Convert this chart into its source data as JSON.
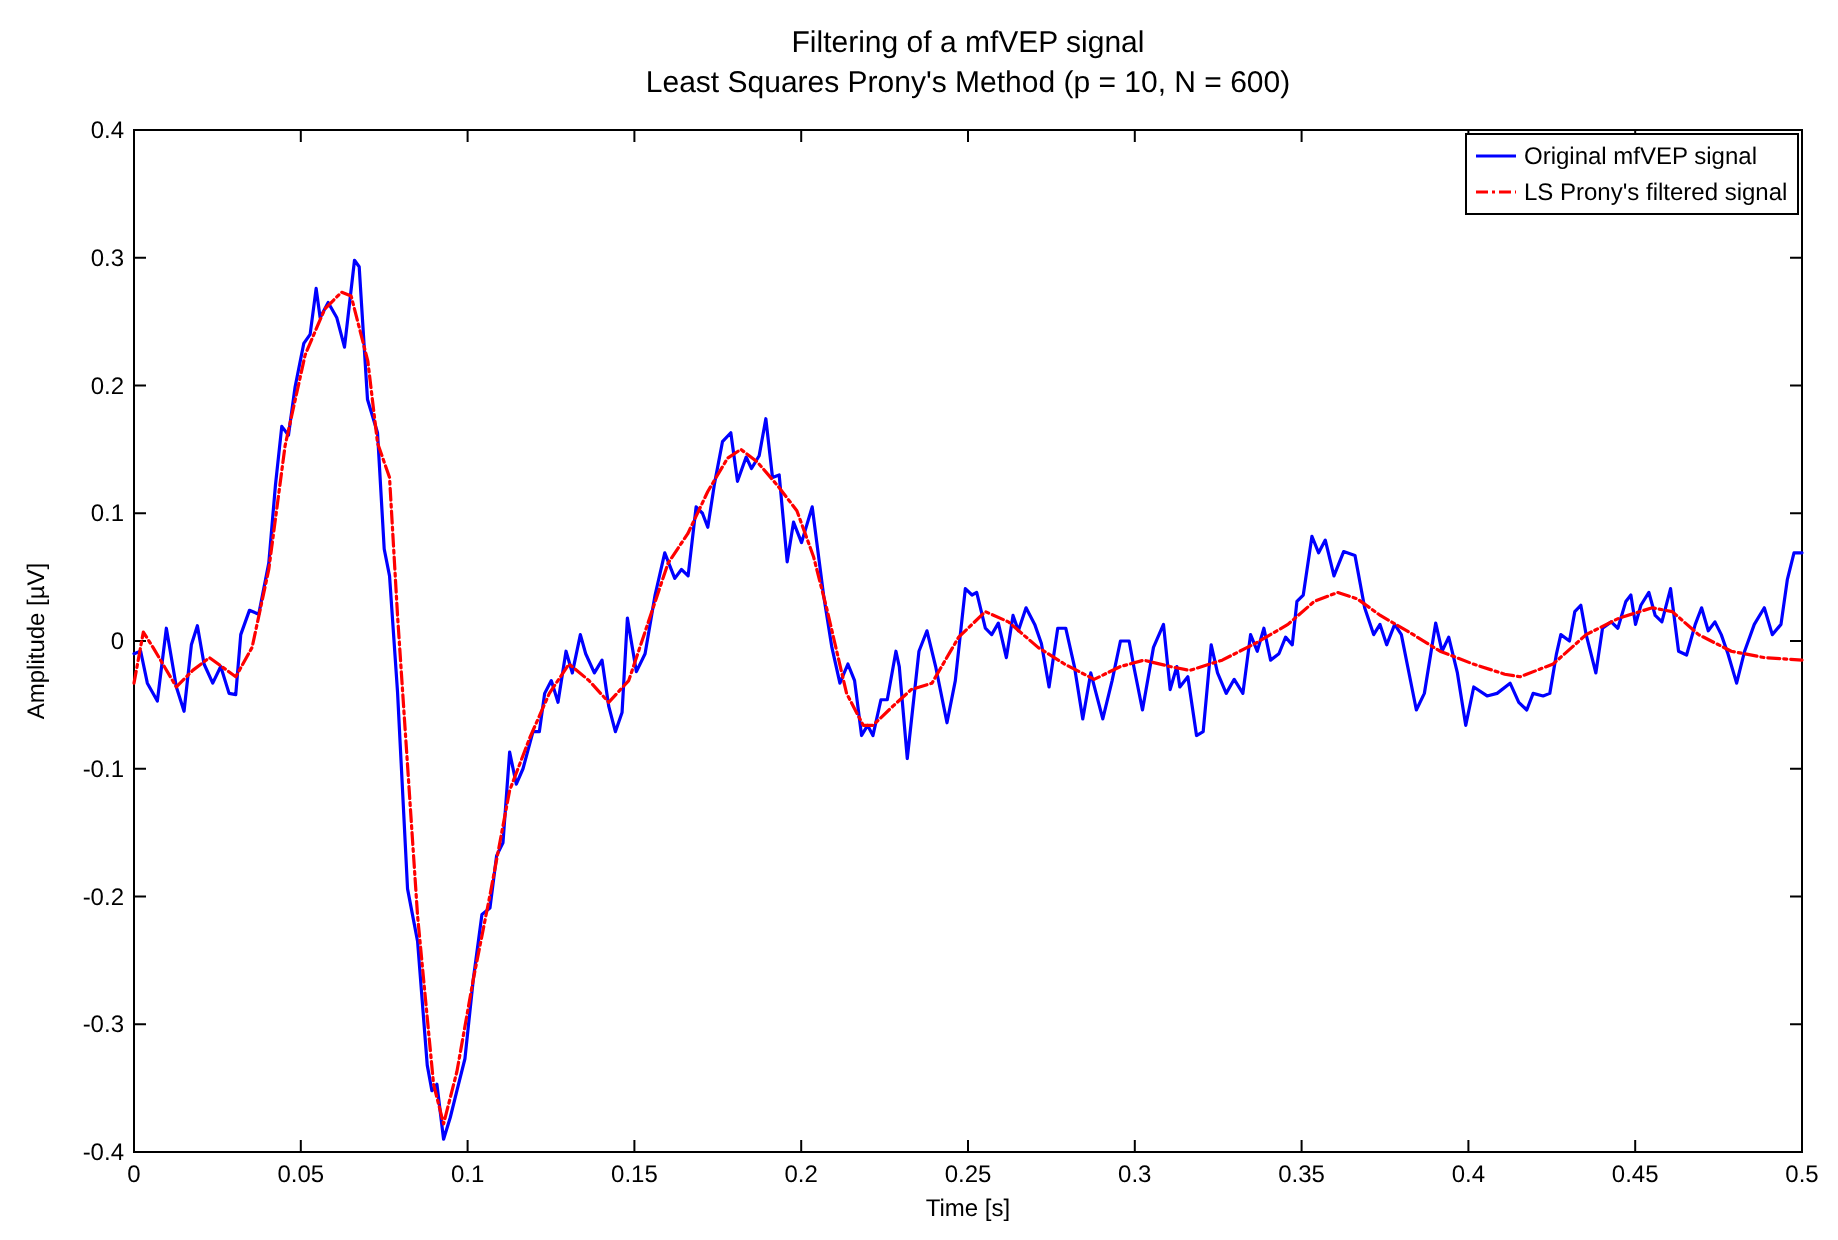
{
  "chart_data": {
    "type": "line",
    "title": "Filtering of a mfVEP signal",
    "subtitle": "Least Squares Prony's Method (p = 10, N = 600)",
    "xlabel": "Time [s]",
    "ylabel": "Amplitude [µV]",
    "xlim": [
      0,
      0.5
    ],
    "ylim": [
      -0.4,
      0.4
    ],
    "xticks": [
      0,
      0.05,
      0.1,
      0.15,
      0.2,
      0.25,
      0.3,
      0.35,
      0.4,
      0.45,
      0.5
    ],
    "yticks": [
      -0.4,
      -0.3,
      -0.2,
      -0.1,
      0,
      0.1,
      0.2,
      0.3,
      0.4
    ],
    "grid": false,
    "legend": "top right",
    "series": [
      {
        "name": "Original mfVEP signal",
        "color": "#0000ff",
        "line_style": "solid",
        "x": [
          0,
          0.002,
          0.004,
          0.007,
          0.0097,
          0.0127,
          0.015,
          0.0172,
          0.019,
          0.021,
          0.0236,
          0.026,
          0.0285,
          0.0305,
          0.032,
          0.0346,
          0.0374,
          0.0404,
          0.0424,
          0.0443,
          0.0463,
          0.0483,
          0.0509,
          0.0528,
          0.0546,
          0.0558,
          0.0582,
          0.0608,
          0.0631,
          0.0661,
          0.0675,
          0.07,
          0.073,
          0.075,
          0.0766,
          0.079,
          0.082,
          0.085,
          0.0879,
          0.0893,
          0.0908,
          0.0928,
          0.0948,
          0.0968,
          0.0992,
          0.1017,
          0.1043,
          0.1067,
          0.1087,
          0.1106,
          0.1126,
          0.1146,
          0.1166,
          0.1196,
          0.1215,
          0.1231,
          0.1251,
          0.1271,
          0.1295,
          0.1314,
          0.1338,
          0.1354,
          0.138,
          0.1403,
          0.1423,
          0.1443,
          0.1463,
          0.1479,
          0.1506,
          0.1532,
          0.1562,
          0.1591,
          0.1621,
          0.1641,
          0.1661,
          0.1685,
          0.1704,
          0.172,
          0.174,
          0.1764,
          0.1789,
          0.1809,
          0.1835,
          0.1851,
          0.1874,
          0.1894,
          0.1914,
          0.1934,
          0.1958,
          0.1977,
          0.2001,
          0.2033,
          0.2067,
          0.2092,
          0.2116,
          0.214,
          0.216,
          0.2181,
          0.2199,
          0.2215,
          0.2239,
          0.2258,
          0.2284,
          0.2294,
          0.2318,
          0.2353,
          0.2377,
          0.2403,
          0.2437,
          0.2462,
          0.2492,
          0.2512,
          0.2526,
          0.2552,
          0.2571,
          0.2591,
          0.2615,
          0.2635,
          0.2651,
          0.2674,
          0.27,
          0.272,
          0.2743,
          0.2769,
          0.2793,
          0.2819,
          0.2844,
          0.2868,
          0.2904,
          0.2932,
          0.2957,
          0.2983,
          0.2997,
          0.3023,
          0.3056,
          0.3086,
          0.3106,
          0.3126,
          0.3135,
          0.3159,
          0.3185,
          0.3205,
          0.3229,
          0.3248,
          0.3274,
          0.3298,
          0.3324,
          0.3347,
          0.3367,
          0.3387,
          0.3407,
          0.3432,
          0.3452,
          0.3472,
          0.3486,
          0.3505,
          0.3531,
          0.3551,
          0.3571,
          0.3597,
          0.3626,
          0.366,
          0.3689,
          0.3716,
          0.3735,
          0.3755,
          0.3779,
          0.3799,
          0.3818,
          0.3844,
          0.3868,
          0.3902,
          0.3921,
          0.3941,
          0.3967,
          0.3992,
          0.4016,
          0.4056,
          0.4086,
          0.4125,
          0.4151,
          0.4175,
          0.4194,
          0.4224,
          0.4244,
          0.4264,
          0.4277,
          0.4303,
          0.4319,
          0.4337,
          0.4353,
          0.4382,
          0.4402,
          0.4428,
          0.4448,
          0.4472,
          0.4487,
          0.4501,
          0.4517,
          0.4541,
          0.456,
          0.458,
          0.4606,
          0.463,
          0.4654,
          0.468,
          0.4699,
          0.4719,
          0.4739,
          0.4758,
          0.4778,
          0.4804,
          0.4828,
          0.4857,
          0.4887,
          0.4911,
          0.4937,
          0.4956,
          0.4976,
          0.5
        ],
        "values": [
          -0.01,
          -0.008,
          -0.033,
          -0.047,
          0.01,
          -0.036,
          -0.055,
          -0.003,
          0.012,
          -0.018,
          -0.033,
          -0.02,
          -0.041,
          -0.042,
          0.005,
          0.024,
          0.021,
          0.061,
          0.122,
          0.168,
          0.161,
          0.199,
          0.233,
          0.24,
          0.276,
          0.253,
          0.265,
          0.253,
          0.23,
          0.298,
          0.293,
          0.189,
          0.163,
          0.072,
          0.051,
          -0.04,
          -0.194,
          -0.235,
          -0.332,
          -0.352,
          -0.347,
          -0.39,
          -0.373,
          -0.352,
          -0.327,
          -0.265,
          -0.214,
          -0.209,
          -0.168,
          -0.158,
          -0.087,
          -0.112,
          -0.1,
          -0.071,
          -0.071,
          -0.041,
          -0.031,
          -0.048,
          -0.008,
          -0.025,
          0.005,
          -0.01,
          -0.025,
          -0.015,
          -0.051,
          -0.071,
          -0.056,
          0.018,
          -0.024,
          -0.01,
          0.036,
          0.069,
          0.049,
          0.056,
          0.051,
          0.105,
          0.1,
          0.089,
          0.123,
          0.156,
          0.163,
          0.125,
          0.144,
          0.135,
          0.145,
          0.174,
          0.128,
          0.13,
          0.062,
          0.093,
          0.077,
          0.105,
          0.036,
          -0.005,
          -0.033,
          -0.018,
          -0.031,
          -0.074,
          -0.066,
          -0.074,
          -0.046,
          -0.046,
          -0.008,
          -0.02,
          -0.092,
          -0.008,
          0.008,
          -0.02,
          -0.064,
          -0.031,
          0.041,
          0.036,
          0.038,
          0.01,
          0.005,
          0.014,
          -0.013,
          0.02,
          0.008,
          0.026,
          0.013,
          -0.002,
          -0.036,
          0.01,
          0.01,
          -0.02,
          -0.061,
          -0.025,
          -0.061,
          -0.031,
          0,
          0,
          -0.02,
          -0.054,
          -0.005,
          0.013,
          -0.038,
          -0.02,
          -0.036,
          -0.028,
          -0.074,
          -0.071,
          -0.003,
          -0.025,
          -0.041,
          -0.03,
          -0.041,
          0.005,
          -0.008,
          0.01,
          -0.015,
          -0.01,
          0.003,
          -0.003,
          0.031,
          0.036,
          0.082,
          0.069,
          0.079,
          0.051,
          0.07,
          0.067,
          0.026,
          0.005,
          0.013,
          -0.003,
          0.013,
          0.005,
          -0.02,
          -0.054,
          -0.041,
          0.014,
          -0.008,
          0.003,
          -0.025,
          -0.066,
          -0.036,
          -0.043,
          -0.041,
          -0.033,
          -0.048,
          -0.054,
          -0.041,
          -0.043,
          -0.041,
          -0.01,
          0.005,
          0,
          0.023,
          0.028,
          0.005,
          -0.025,
          0.01,
          0.015,
          0.01,
          0.031,
          0.036,
          0.013,
          0.028,
          0.038,
          0.02,
          0.015,
          0.041,
          -0.008,
          -0.011,
          0.013,
          0.026,
          0.008,
          0.015,
          0.005,
          -0.01,
          -0.033,
          -0.008,
          0.013,
          0.026,
          0.005,
          0.013,
          0.048,
          0.069,
          0.069
        ]
      },
      {
        "name": "LS Prony's filtered signal",
        "color": "#ff0000",
        "line_style": "dashed",
        "x": [
          0,
          0.0028,
          0.0057,
          0.0127,
          0.0176,
          0.0226,
          0.0305,
          0.0354,
          0.0404,
          0.0453,
          0.0513,
          0.0572,
          0.0622,
          0.0651,
          0.0701,
          0.073,
          0.0766,
          0.079,
          0.085,
          0.0898,
          0.0928,
          0.0968,
          0.1017,
          0.1067,
          0.1126,
          0.1186,
          0.1245,
          0.1304,
          0.1364,
          0.1423,
          0.1483,
          0.1542,
          0.1601,
          0.166,
          0.172,
          0.1779,
          0.1819,
          0.1869,
          0.1928,
          0.1987,
          0.2037,
          0.2077,
          0.2136,
          0.2186,
          0.2215,
          0.2275,
          0.233,
          0.2392,
          0.2472,
          0.2552,
          0.2621,
          0.271,
          0.2789,
          0.2878,
          0.2957,
          0.3027,
          0.3106,
          0.3165,
          0.3262,
          0.336,
          0.3459,
          0.3538,
          0.3608,
          0.3667,
          0.3736,
          0.3816,
          0.3915,
          0.4014,
          0.4109,
          0.4155,
          0.4254,
          0.4353,
          0.4452,
          0.4551,
          0.4611,
          0.469,
          0.4788,
          0.4887,
          0.5
        ],
        "values": [
          -0.033,
          0.007,
          -0.005,
          -0.036,
          -0.023,
          -0.013,
          -0.028,
          -0.005,
          0.056,
          0.153,
          0.224,
          0.26,
          0.273,
          0.27,
          0.219,
          0.155,
          0.128,
          0.02,
          -0.215,
          -0.347,
          -0.378,
          -0.337,
          -0.265,
          -0.199,
          -0.117,
          -0.076,
          -0.041,
          -0.018,
          -0.031,
          -0.048,
          -0.031,
          0.015,
          0.061,
          0.084,
          0.117,
          0.143,
          0.15,
          0.14,
          0.122,
          0.102,
          0.066,
          0.025,
          -0.041,
          -0.066,
          -0.066,
          -0.051,
          -0.038,
          -0.033,
          0.003,
          0.023,
          0.015,
          -0.005,
          -0.018,
          -0.03,
          -0.02,
          -0.015,
          -0.02,
          -0.023,
          -0.015,
          -0.002,
          0.013,
          0.031,
          0.038,
          0.033,
          0.02,
          0.008,
          -0.008,
          -0.018,
          -0.026,
          -0.028,
          -0.018,
          0.005,
          0.018,
          0.026,
          0.023,
          0.005,
          -0.008,
          -0.013,
          -0.015
        ]
      }
    ]
  }
}
